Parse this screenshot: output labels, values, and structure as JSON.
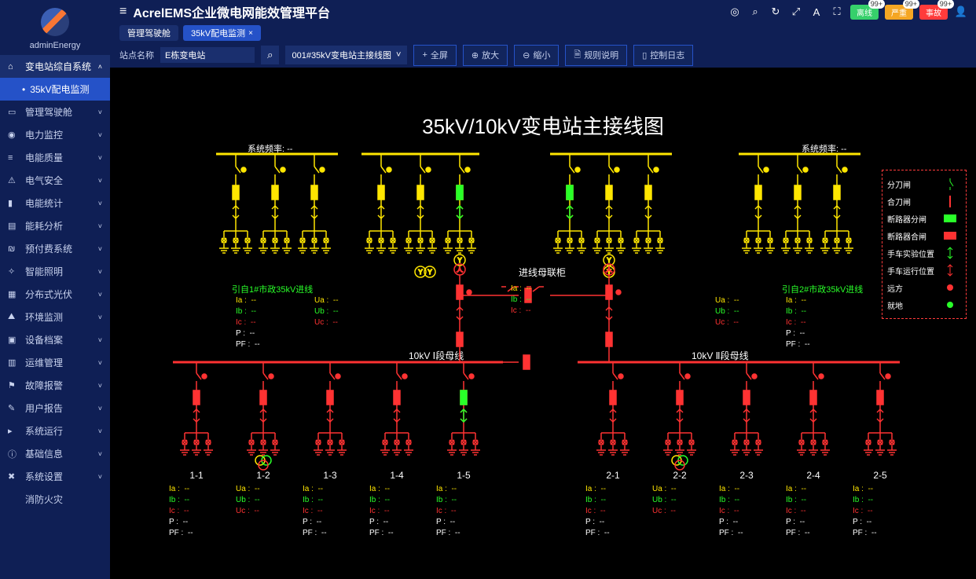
{
  "app": {
    "title": "AcrelEMS企业微电网能效管理平台",
    "username": "adminEnergy"
  },
  "sidebar": {
    "active": "35kV配电监测",
    "items": [
      {
        "icon": "⌂",
        "label": "变电站综自系统",
        "expand": "˄",
        "active": true
      },
      {
        "icon": "▭",
        "label": "管理驾驶舱"
      },
      {
        "icon": "◉",
        "label": "电力监控"
      },
      {
        "icon": "≡",
        "label": "电能质量"
      },
      {
        "icon": "⚠",
        "label": "电气安全"
      },
      {
        "icon": "▮",
        "label": "电能统计"
      },
      {
        "icon": "▤",
        "label": "能耗分析"
      },
      {
        "icon": "₪",
        "label": "预付费系统"
      },
      {
        "icon": "✧",
        "label": "智能照明"
      },
      {
        "icon": "▦",
        "label": "分布式光伏"
      },
      {
        "icon": "⛰",
        "label": "环境监测"
      },
      {
        "icon": "▣",
        "label": "设备档案"
      },
      {
        "icon": "▥",
        "label": "运维管理"
      },
      {
        "icon": "⚑",
        "label": "故障报警"
      },
      {
        "icon": "✎",
        "label": "用户报告"
      },
      {
        "icon": "▸",
        "label": "系统运行"
      },
      {
        "icon": "ⓘ",
        "label": "基础信息"
      },
      {
        "icon": "✖",
        "label": "系统设置"
      },
      {
        "icon": "",
        "label": "消防火灾",
        "noChev": true
      }
    ],
    "sub": "35kV配电监测"
  },
  "header": {
    "icons": [
      "◎",
      "⌕",
      "↻",
      "⤢",
      "A",
      "⛶"
    ],
    "badges": [
      {
        "label": "离线",
        "color": "#36d06b",
        "count": "99+"
      },
      {
        "label": "严重",
        "color": "#f5a623",
        "count": "99+"
      },
      {
        "label": "事故",
        "color": "#ff3b3b",
        "count": "99+"
      }
    ]
  },
  "tabs": [
    {
      "label": "管理驾驶舱",
      "closable": false
    },
    {
      "label": "35kV配电监测",
      "closable": true,
      "active": true
    }
  ],
  "toolbar": {
    "siteLabel": "站点名称",
    "siteValue": "E栋变电站",
    "lineSelect": "001#35kV变电站主接线图",
    "buttons": [
      {
        "icon": "+",
        "label": "全屏"
      },
      {
        "icon": "⊕",
        "label": "放大"
      },
      {
        "icon": "⊖",
        "label": "缩小"
      },
      {
        "icon": "🗎",
        "label": "规则说明"
      },
      {
        "icon": "▯",
        "label": "控制日志"
      }
    ]
  },
  "diagram": {
    "title": "35kV/10kV变电站主接线图",
    "colors": {
      "yellow": "#ffe600",
      "red": "#ff3232",
      "green": "#29ff29",
      "white": "#ffffff",
      "measIa": "#ffe600",
      "measIb": "#29ff29",
      "measIc": "#ff3232"
    },
    "sysFreq": {
      "label": "系统频率:",
      "value": "--"
    },
    "busLabels": {
      "tie": "进线母联柜",
      "bus1": "10kV Ⅰ段母线",
      "bus2": "10kV Ⅱ段母线"
    },
    "source": {
      "left": "引自1#市政35kV进线",
      "right": "引自2#市政35kV进线",
      "color": "#29ff29"
    },
    "legend": [
      {
        "label": "分刀闸",
        "color": "#29ff29",
        "type": "vbar"
      },
      {
        "label": "合刀闸",
        "color": "#ff3232",
        "type": "vbar-closed"
      },
      {
        "label": "断路器分闸",
        "color": "#29ff29",
        "type": "rect"
      },
      {
        "label": "断路器合闸",
        "color": "#ff3232",
        "type": "rect"
      },
      {
        "label": "手车实验位置",
        "color": "#29ff29",
        "type": "arrow"
      },
      {
        "label": "手车运行位置",
        "color": "#ff3232",
        "type": "arrow"
      },
      {
        "label": "远方",
        "color": "#ff3232",
        "type": "dot"
      },
      {
        "label": "就地",
        "color": "#29ff29",
        "type": "dot"
      }
    ],
    "uabc": {
      "Ua": "--",
      "Ub": "--",
      "Uc": "--"
    },
    "iabc": {
      "Ia": "--",
      "Ib": "--",
      "Ic": "--",
      "P": "--",
      "PF": "--"
    },
    "feeders": {
      "left": [
        "1-1",
        "1-2",
        "1-3",
        "1-4",
        "1-5"
      ],
      "right": [
        "2-1",
        "2-2",
        "2-3",
        "2-4",
        "2-5"
      ]
    }
  }
}
